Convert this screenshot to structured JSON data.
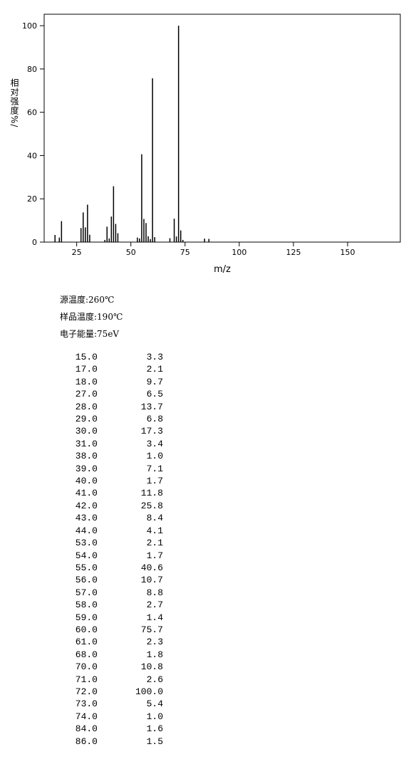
{
  "chart_data": {
    "type": "stem",
    "x_label": "m/z",
    "y_label": "相对强度%/",
    "x": [
      15,
      17,
      18,
      27,
      28,
      29,
      30,
      31,
      38,
      39,
      40,
      41,
      42,
      43,
      44,
      53,
      54,
      55,
      56,
      57,
      58,
      59,
      60,
      61,
      68,
      70,
      71,
      72,
      73,
      74,
      84,
      86
    ],
    "values": [
      3.3,
      2.1,
      9.7,
      6.5,
      13.7,
      6.8,
      17.3,
      3.4,
      1.0,
      7.1,
      1.7,
      11.8,
      25.8,
      8.4,
      4.1,
      2.1,
      1.7,
      40.6,
      10.7,
      8.8,
      2.7,
      1.4,
      75.7,
      2.3,
      1.8,
      10.8,
      2.6,
      100.0,
      5.4,
      1.0,
      1.6,
      1.5
    ],
    "color": "#000000",
    "xlim": [
      10,
      174.3
    ],
    "ylim": [
      0,
      105.3
    ],
    "xticks": [
      25,
      50,
      75,
      100,
      125,
      150
    ],
    "yticks": [
      0,
      20,
      40,
      60,
      80,
      100
    ]
  },
  "info": [
    "源温度:260℃",
    "样品温度:190℃",
    "电子能量:75eV"
  ],
  "table": {
    "rows": [
      [
        "15.0",
        "3.3"
      ],
      [
        "17.0",
        "2.1"
      ],
      [
        "18.0",
        "9.7"
      ],
      [
        "27.0",
        "6.5"
      ],
      [
        "28.0",
        "13.7"
      ],
      [
        "29.0",
        "6.8"
      ],
      [
        "30.0",
        "17.3"
      ],
      [
        "31.0",
        "3.4"
      ],
      [
        "38.0",
        "1.0"
      ],
      [
        "39.0",
        "7.1"
      ],
      [
        "40.0",
        "1.7"
      ],
      [
        "41.0",
        "11.8"
      ],
      [
        "42.0",
        "25.8"
      ],
      [
        "43.0",
        "8.4"
      ],
      [
        "44.0",
        "4.1"
      ],
      [
        "53.0",
        "2.1"
      ],
      [
        "54.0",
        "1.7"
      ],
      [
        "55.0",
        "40.6"
      ],
      [
        "56.0",
        "10.7"
      ],
      [
        "57.0",
        "8.8"
      ],
      [
        "58.0",
        "2.7"
      ],
      [
        "59.0",
        "1.4"
      ],
      [
        "60.0",
        "75.7"
      ],
      [
        "61.0",
        "2.3"
      ],
      [
        "68.0",
        "1.8"
      ],
      [
        "70.0",
        "10.8"
      ],
      [
        "71.0",
        "2.6"
      ],
      [
        "72.0",
        "100.0"
      ],
      [
        "73.0",
        "5.4"
      ],
      [
        "74.0",
        "1.0"
      ],
      [
        "84.0",
        "1.6"
      ],
      [
        "86.0",
        "1.5"
      ]
    ]
  }
}
